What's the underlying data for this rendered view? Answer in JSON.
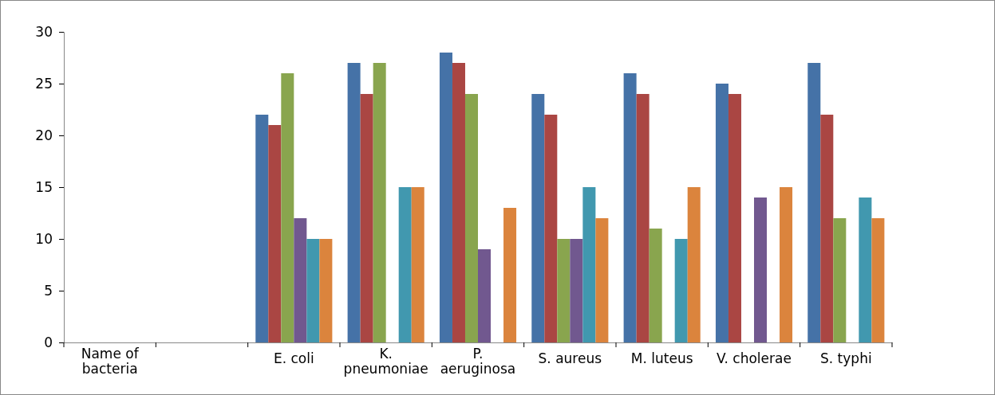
{
  "chart_data": {
    "type": "bar",
    "categories": [
      "Name of bacteria",
      null,
      "E. coli",
      "K. pneumoniae",
      "P. aeruginosa",
      "S. aureus",
      "M. luteus",
      "V. cholerae",
      "S. typhi"
    ],
    "series": [
      {
        "color": "#4572a7",
        "values": [
          null,
          null,
          22,
          27,
          28,
          24,
          26,
          25,
          27
        ]
      },
      {
        "color": "#aa4643",
        "values": [
          null,
          null,
          21,
          24,
          27,
          22,
          24,
          24,
          22
        ]
      },
      {
        "color": "#89a54e",
        "values": [
          null,
          null,
          26,
          27,
          24,
          10,
          11,
          null,
          12
        ]
      },
      {
        "color": "#71588f",
        "values": [
          null,
          null,
          12,
          null,
          9,
          10,
          null,
          14,
          null
        ]
      },
      {
        "color": "#4198af",
        "values": [
          null,
          null,
          10,
          15,
          null,
          15,
          10,
          null,
          14
        ]
      },
      {
        "color": "#db843d",
        "values": [
          null,
          null,
          10,
          15,
          13,
          12,
          15,
          15,
          12
        ]
      }
    ],
    "ylim": [
      0,
      30
    ],
    "yticks": [
      0,
      5,
      10,
      15,
      20,
      25,
      30
    ],
    "grid": false
  }
}
